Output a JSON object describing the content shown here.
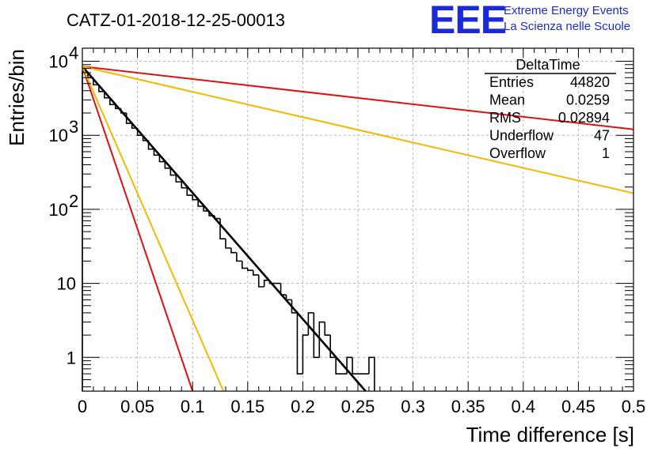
{
  "header": {
    "title": "CATZ-01-2018-12-25-00013",
    "logo_mark": "EEE",
    "logo_line1": "Extreme Energy Events",
    "logo_line2": "La Scienza nelle Scuole"
  },
  "stats_box": {
    "name": "DeltaTime",
    "rows": [
      {
        "label": "Entries",
        "value": "44820"
      },
      {
        "label": "Mean",
        "value": "0.0259"
      },
      {
        "label": "RMS",
        "value": "0.02894"
      },
      {
        "label": "Underflow",
        "value": "47"
      },
      {
        "label": "Overflow",
        "value": "1"
      }
    ]
  },
  "chart_data": {
    "type": "histogram",
    "title": "CATZ-01-2018-12-25-00013",
    "xlabel": "Time difference [s]",
    "ylabel": "Entries/bin",
    "x_scale": "linear",
    "y_scale": "log",
    "xlim": [
      0,
      0.5
    ],
    "ylim": [
      0.35,
      15000
    ],
    "grid": true,
    "x_ticks": [
      "0",
      "0.05",
      "0.1",
      "0.15",
      "0.2",
      "0.25",
      "0.3",
      "0.35",
      "0.4",
      "0.45",
      "0.5"
    ],
    "y_ticks": [
      {
        "value": 1,
        "label": "1"
      },
      {
        "value": 10,
        "label": "10"
      },
      {
        "value": 100,
        "label": "10",
        "exp": "2"
      },
      {
        "value": 1000,
        "label": "10",
        "exp": "3"
      },
      {
        "value": 10000,
        "label": "10",
        "exp": "4"
      }
    ],
    "bin_width": 0.005,
    "histogram": {
      "color": "#000000",
      "counts": [
        7200,
        6000,
        4800,
        3900,
        3200,
        2600,
        2300,
        2000,
        1450,
        1250,
        1000,
        850,
        650,
        540,
        440,
        360,
        290,
        235,
        195,
        155,
        135,
        110,
        95,
        82,
        75,
        40,
        30,
        26,
        20,
        16,
        15,
        13,
        9,
        11,
        10,
        10,
        7,
        6,
        4,
        0.6,
        2,
        4,
        1,
        3,
        2,
        1,
        0.6,
        0.6,
        1,
        0.6,
        0.6,
        0.6,
        1,
        0.3,
        0.3,
        0.3,
        0.3,
        0.3,
        0.3,
        0.3,
        0.3,
        0.3,
        0.3,
        0.3,
        0.3,
        0.3,
        0.3,
        0.3,
        0.3,
        0.3,
        0.3,
        0.3,
        0.3,
        0.3,
        0.3,
        0.3,
        0.3,
        0.3,
        0.3,
        0.3,
        0.3,
        0.3,
        0.3,
        0.3,
        0.3,
        0.3,
        0.3,
        0.3,
        0.3,
        0.3,
        0.3,
        0.3,
        0.3,
        0.3,
        0.3,
        0.3,
        0.3,
        0.3,
        0.3,
        0.3
      ]
    },
    "lines": [
      {
        "color": "#000000",
        "x": [
          0,
          0.257
        ],
        "y": [
          8500,
          0.35
        ]
      },
      {
        "color": "#dd1111",
        "x": [
          0,
          0.1
        ],
        "y": [
          8500,
          0.35
        ]
      },
      {
        "color": "#f5b800",
        "x": [
          0,
          0.128
        ],
        "y": [
          8500,
          0.35
        ]
      },
      {
        "color": "#dd1111",
        "x": [
          0,
          0.5
        ],
        "y": [
          8500,
          1200
        ]
      },
      {
        "color": "#f5b800",
        "x": [
          0,
          0.5
        ],
        "y": [
          8500,
          165
        ]
      }
    ]
  }
}
